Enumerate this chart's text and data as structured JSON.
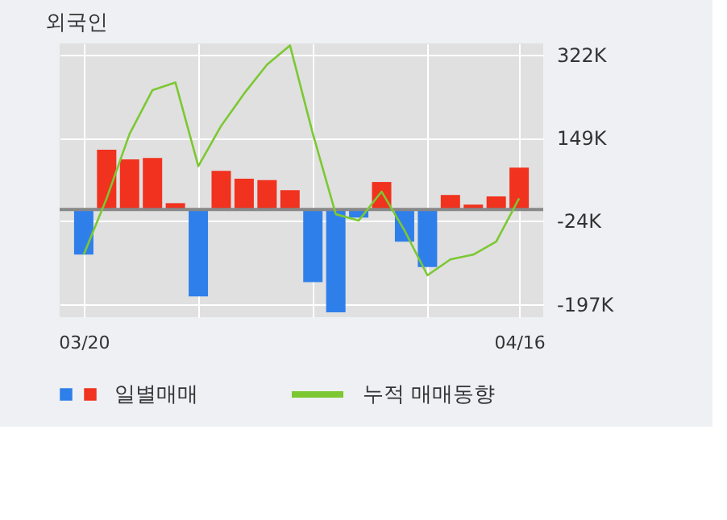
{
  "chart_data": {
    "type": "bar",
    "title": "외국인",
    "categories": [
      "03/20",
      null,
      null,
      null,
      null,
      null,
      null,
      null,
      null,
      null,
      null,
      null,
      null,
      null,
      null,
      null,
      null,
      null,
      null,
      "04/16"
    ],
    "series": [
      {
        "name": "일별매매",
        "values": [
          -94,
          124,
          104,
          107,
          13,
          -181,
          80,
          64,
          61,
          40,
          -151,
          -214,
          -17,
          57,
          -67,
          -120,
          30,
          10,
          27,
          87
        ],
        "colors": [
          "#2f7fea",
          "#f0321e",
          "#f0321e",
          "#f0321e",
          "#f0321e",
          "#2f7fea",
          "#f0321e",
          "#f0321e",
          "#f0321e",
          "#f0321e",
          "#2f7fea",
          "#2f7fea",
          "#2f7fea",
          "#f0321e",
          "#2f7fea",
          "#2f7fea",
          "#f0321e",
          "#f0321e",
          "#f0321e",
          "#f0321e"
        ]
      },
      {
        "name": "누적 매매동향",
        "type": "line",
        "color": "#7cc832",
        "values": [
          -94,
          23,
          157,
          248,
          264,
          90,
          174,
          241,
          301,
          341,
          157,
          -10,
          -23,
          37,
          -44,
          -137,
          -104,
          -94,
          -67,
          23
        ]
      }
    ],
    "ylim": [
      -224,
      345
    ],
    "yticks": [
      {
        "value": 322,
        "label": "322K"
      },
      {
        "value": 149,
        "label": "149K"
      },
      {
        "value": -24,
        "label": "-24K"
      },
      {
        "value": -197,
        "label": "-197K"
      }
    ],
    "grid": true,
    "legend": "bottom"
  }
}
